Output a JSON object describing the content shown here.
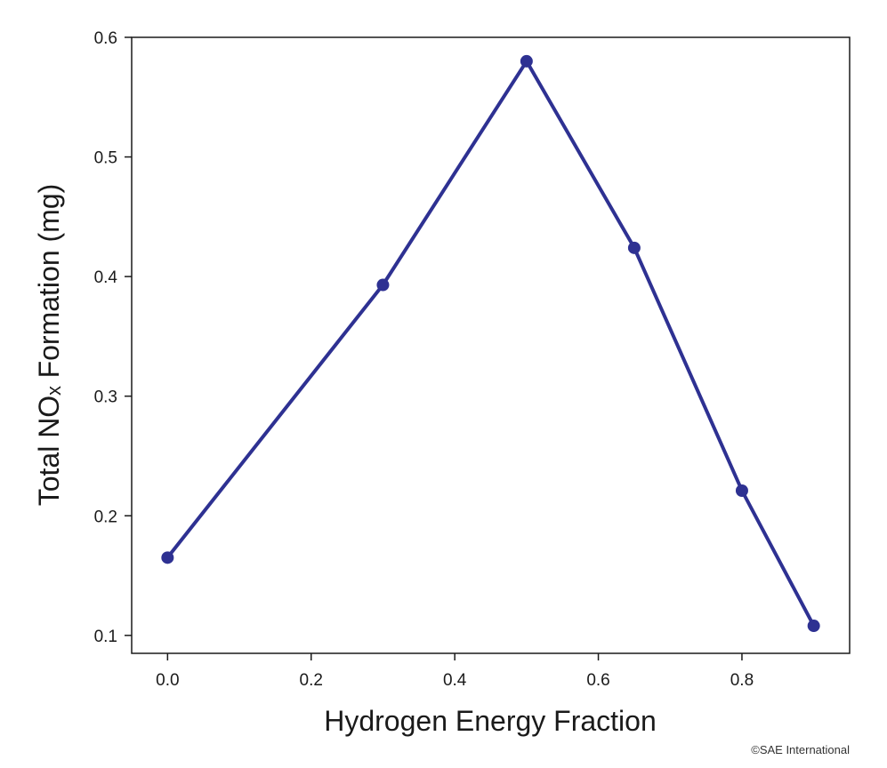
{
  "chart_data": {
    "type": "line",
    "x": [
      0.0,
      0.3,
      0.5,
      0.65,
      0.8,
      0.9
    ],
    "series": [
      {
        "values": [
          0.165,
          0.393,
          0.58,
          0.424,
          0.221,
          0.108
        ]
      }
    ],
    "xlabel": "Hydrogen Energy Fraction",
    "ylabel": "Total NOₓ Formation (mg)",
    "xlim": [
      -0.05,
      0.95
    ],
    "ylim": [
      0.085,
      0.6
    ],
    "xticks": [
      0.0,
      0.2,
      0.4,
      0.6,
      0.8
    ],
    "xtick_labels": [
      "0.0",
      "0.2",
      "0.4",
      "0.6",
      "0.8"
    ],
    "yticks": [
      0.1,
      0.2,
      0.3,
      0.4,
      0.5,
      0.6
    ],
    "ytick_labels": [
      "0.1",
      "0.2",
      "0.3",
      "0.4",
      "0.5",
      "0.6"
    ],
    "grid": false,
    "color": "#2e3192",
    "marker": "circle"
  },
  "credit": "©SAE International"
}
